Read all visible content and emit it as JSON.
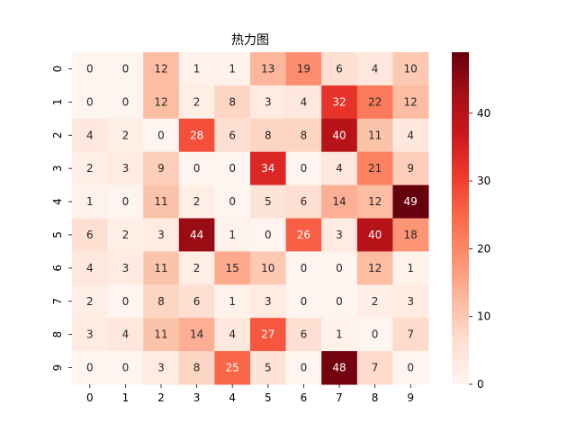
{
  "chart_data": {
    "type": "heatmap",
    "title": "热力图",
    "xlabel": "",
    "ylabel": "",
    "x_categories": [
      "0",
      "1",
      "2",
      "3",
      "4",
      "5",
      "6",
      "7",
      "8",
      "9"
    ],
    "y_categories": [
      "0",
      "1",
      "2",
      "3",
      "4",
      "5",
      "6",
      "7",
      "8",
      "9"
    ],
    "values": [
      [
        0,
        0,
        12,
        1,
        1,
        13,
        19,
        6,
        4,
        10
      ],
      [
        0,
        0,
        12,
        2,
        8,
        3,
        4,
        32,
        22,
        12
      ],
      [
        4,
        2,
        0,
        28,
        6,
        8,
        8,
        40,
        11,
        4
      ],
      [
        2,
        3,
        9,
        0,
        0,
        34,
        0,
        4,
        21,
        9
      ],
      [
        1,
        0,
        11,
        2,
        0,
        5,
        6,
        14,
        12,
        49
      ],
      [
        6,
        2,
        3,
        44,
        1,
        0,
        26,
        3,
        40,
        18
      ],
      [
        4,
        3,
        11,
        2,
        15,
        10,
        0,
        0,
        12,
        1
      ],
      [
        2,
        0,
        8,
        6,
        1,
        3,
        0,
        0,
        2,
        3
      ],
      [
        3,
        4,
        11,
        14,
        4,
        27,
        6,
        1,
        0,
        7
      ],
      [
        0,
        0,
        3,
        8,
        25,
        5,
        0,
        48,
        7,
        0
      ]
    ],
    "value_range": [
      0,
      49
    ],
    "colormap": "Reds",
    "colorbar_ticks": [
      0,
      10,
      20,
      30,
      40
    ],
    "annotated": true,
    "grid": false,
    "colorbar_placement": "right"
  }
}
